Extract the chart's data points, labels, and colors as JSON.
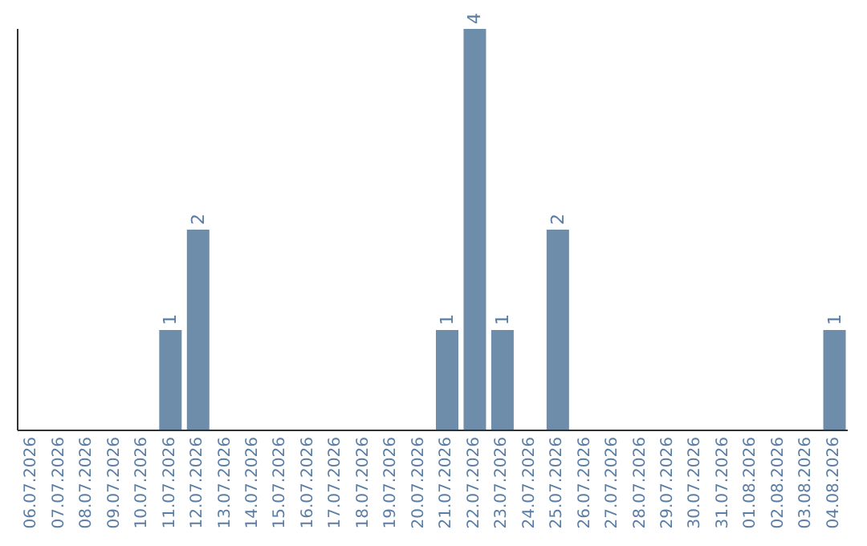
{
  "chart_data": {
    "type": "bar",
    "categories": [
      "06.07.2026",
      "07.07.2026",
      "08.07.2026",
      "09.07.2026",
      "10.07.2026",
      "11.07.2026",
      "12.07.2026",
      "13.07.2026",
      "14.07.2026",
      "15.07.2026",
      "16.07.2026",
      "17.07.2026",
      "18.07.2026",
      "19.07.2026",
      "20.07.2026",
      "21.07.2026",
      "22.07.2026",
      "23.07.2026",
      "24.07.2026",
      "25.07.2026",
      "26.07.2026",
      "27.07.2026",
      "28.07.2026",
      "29.07.2026",
      "30.07.2026",
      "31.07.2026",
      "01.08.2026",
      "02.08.2026",
      "03.08.2026",
      "04.08.2026"
    ],
    "values": [
      0,
      0,
      0,
      0,
      0,
      1,
      2,
      0,
      0,
      0,
      0,
      0,
      0,
      0,
      0,
      1,
      4,
      1,
      0,
      2,
      0,
      0,
      0,
      0,
      0,
      0,
      0,
      0,
      0,
      1
    ],
    "value_labels": [
      null,
      null,
      null,
      null,
      null,
      "1",
      "2",
      null,
      null,
      null,
      null,
      null,
      null,
      null,
      null,
      "1",
      "4",
      "1",
      null,
      "2",
      null,
      null,
      null,
      null,
      null,
      null,
      null,
      null,
      null,
      "1"
    ],
    "color": "#6e8dab",
    "grid": false,
    "legend": false
  }
}
